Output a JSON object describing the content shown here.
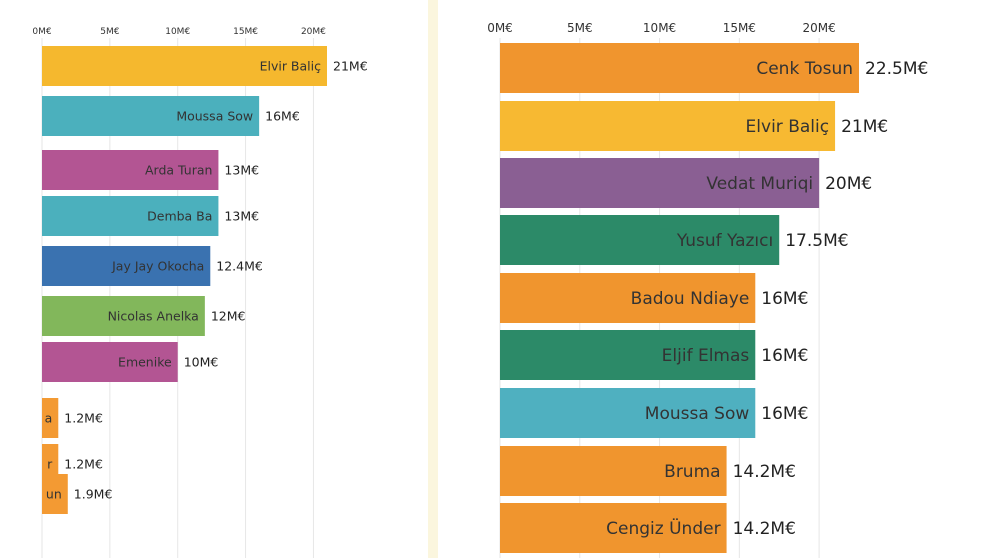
{
  "chart_data": [
    {
      "type": "bar",
      "orientation": "horizontal",
      "title": "",
      "xlabel": "",
      "ylabel": "",
      "xlim": [
        0,
        21
      ],
      "ticks": [
        "0M€",
        "5M€",
        "10M€",
        "15M€",
        "20M€"
      ],
      "tick_values": [
        0,
        5,
        10,
        15,
        20
      ],
      "bars": [
        {
          "name": "Elvir Baliç",
          "value": 21,
          "label": "21M€",
          "color": "#f5b82e"
        },
        {
          "name": "Moussa Sow",
          "value": 16,
          "label": "16M€",
          "color": "#4bb0bd"
        },
        {
          "name": "Arda Turan",
          "value": 13,
          "label": "13M€",
          "color": "#b35593"
        },
        {
          "name": "Demba Ba",
          "value": 13,
          "label": "13M€",
          "color": "#4bb0bd"
        },
        {
          "name": "Jay Jay Okocha",
          "value": 12.4,
          "label": "12.4M€",
          "color": "#3a72b0"
        },
        {
          "name": "Nicolas Anelka",
          "value": 12,
          "label": "12M€",
          "color": "#82b75b"
        },
        {
          "name": "Emenike",
          "value": 10,
          "label": "10M€",
          "color": "#b35593"
        },
        {
          "name": "a",
          "value": 1.2,
          "label": "1.2M€",
          "color": "#f39a33"
        },
        {
          "name": "r",
          "value": 1.2,
          "label": "1.2M€",
          "color": "#f39a33"
        },
        {
          "name": "un",
          "value": 1.9,
          "label": "1.9M€",
          "color": "#f39a33"
        }
      ]
    },
    {
      "type": "bar",
      "orientation": "horizontal",
      "title": "",
      "xlabel": "",
      "ylabel": "",
      "xlim": [
        0,
        22.5
      ],
      "ticks": [
        "0M€",
        "5M€",
        "10M€",
        "15M€",
        "20M€"
      ],
      "tick_values": [
        0,
        5,
        10,
        15,
        20
      ],
      "bars": [
        {
          "name": "Cenk Tosun",
          "value": 22.5,
          "label": "22.5M€",
          "color": "#f0952e"
        },
        {
          "name": "Elvir Baliç",
          "value": 21,
          "label": "21M€",
          "color": "#f7b932"
        },
        {
          "name": "Vedat Muriqi",
          "value": 20,
          "label": "20M€",
          "color": "#8a5f93"
        },
        {
          "name": "Yusuf Yazıcı",
          "value": 17.5,
          "label": "17.5M€",
          "color": "#2c8a68"
        },
        {
          "name": "Badou Ndiaye",
          "value": 16,
          "label": "16M€",
          "color": "#f0952e"
        },
        {
          "name": "Eljif Elmas",
          "value": 16,
          "label": "16M€",
          "color": "#2c8a68"
        },
        {
          "name": "Moussa Sow",
          "value": 16,
          "label": "16M€",
          "color": "#4fb0c0"
        },
        {
          "name": "Bruma",
          "value": 14.2,
          "label": "14.2M€",
          "color": "#f0952e"
        },
        {
          "name": "Cengiz Ünder",
          "value": 14.2,
          "label": "14.2M€",
          "color": "#f0952e"
        }
      ]
    }
  ]
}
